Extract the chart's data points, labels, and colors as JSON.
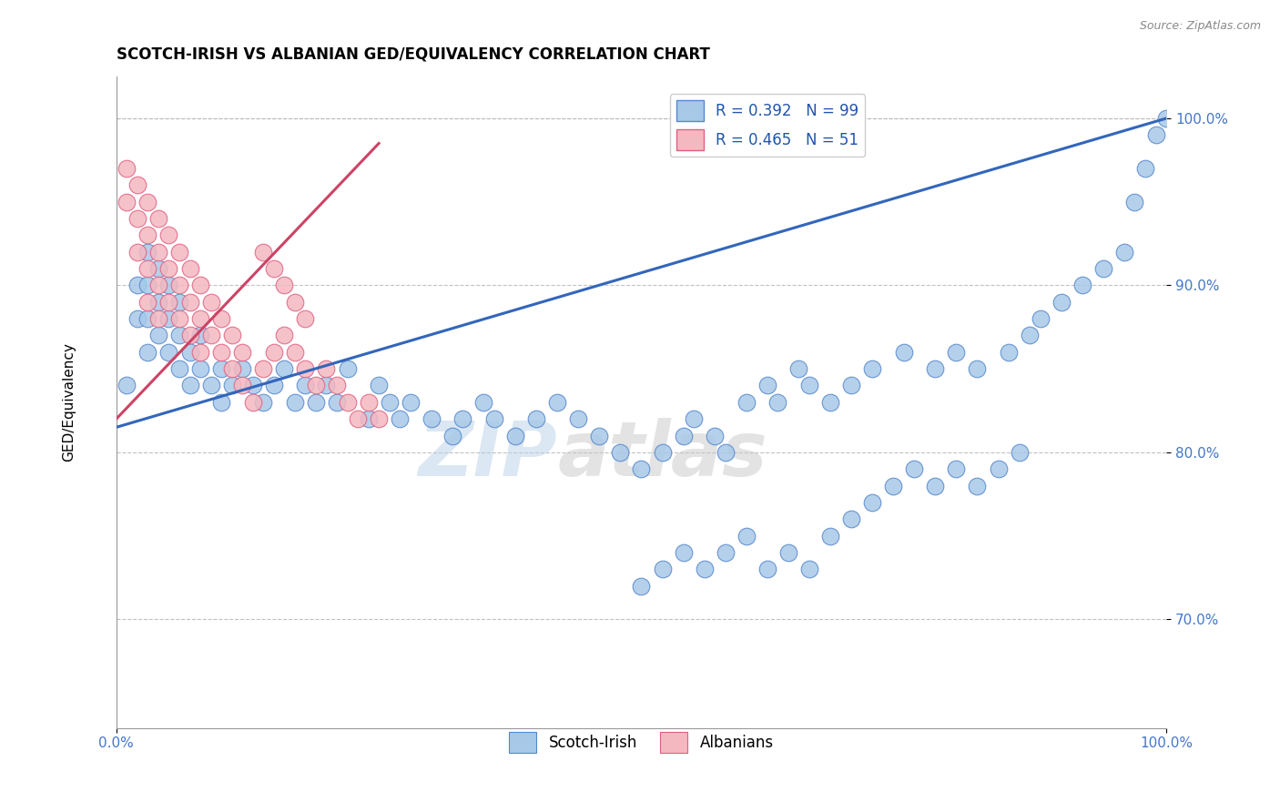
{
  "title": "SCOTCH-IRISH VS ALBANIAN GED/EQUIVALENCY CORRELATION CHART",
  "source_text": "Source: ZipAtlas.com",
  "ylabel": "GED/Equivalency",
  "xlim": [
    0.0,
    1.0
  ],
  "ylim": [
    0.635,
    1.025
  ],
  "x_ticks": [
    0.0,
    1.0
  ],
  "x_tick_labels": [
    "0.0%",
    "100.0%"
  ],
  "y_ticks": [
    0.7,
    0.8,
    0.9,
    1.0
  ],
  "y_tick_labels": [
    "70.0%",
    "80.0%",
    "90.0%",
    "100.0%"
  ],
  "blue_color": "#a8c8e8",
  "pink_color": "#f4b8c0",
  "blue_edge_color": "#5588cc",
  "pink_edge_color": "#e06080",
  "blue_line_color": "#3366bb",
  "pink_line_color": "#cc4466",
  "legend_blue_label": "R = 0.392   N = 99",
  "legend_pink_label": "R = 0.465   N = 51",
  "watermark": "ZIPatlas",
  "watermark_blue": "#c8ddf0",
  "watermark_gray": "#c8c8c8",
  "scotch_irish_x": [
    0.01,
    0.02,
    0.02,
    0.03,
    0.03,
    0.03,
    0.03,
    0.04,
    0.04,
    0.04,
    0.05,
    0.05,
    0.05,
    0.06,
    0.06,
    0.06,
    0.07,
    0.07,
    0.08,
    0.08,
    0.09,
    0.1,
    0.1,
    0.11,
    0.12,
    0.13,
    0.14,
    0.15,
    0.16,
    0.17,
    0.18,
    0.19,
    0.2,
    0.21,
    0.22,
    0.24,
    0.25,
    0.26,
    0.27,
    0.28,
    0.3,
    0.32,
    0.33,
    0.35,
    0.36,
    0.38,
    0.4,
    0.42,
    0.44,
    0.46,
    0.48,
    0.5,
    0.52,
    0.54,
    0.55,
    0.57,
    0.58,
    0.6,
    0.62,
    0.63,
    0.65,
    0.66,
    0.68,
    0.7,
    0.72,
    0.75,
    0.78,
    0.8,
    0.82,
    0.85,
    0.87,
    0.88,
    0.9,
    0.92,
    0.94,
    0.96,
    0.97,
    0.98,
    0.99,
    1.0,
    0.5,
    0.52,
    0.54,
    0.56,
    0.58,
    0.6,
    0.62,
    0.64,
    0.66,
    0.68,
    0.7,
    0.72,
    0.74,
    0.76,
    0.78,
    0.8,
    0.82,
    0.84,
    0.86
  ],
  "scotch_irish_y": [
    0.84,
    0.88,
    0.9,
    0.86,
    0.88,
    0.9,
    0.92,
    0.87,
    0.89,
    0.91,
    0.86,
    0.88,
    0.9,
    0.85,
    0.87,
    0.89,
    0.84,
    0.86,
    0.85,
    0.87,
    0.84,
    0.83,
    0.85,
    0.84,
    0.85,
    0.84,
    0.83,
    0.84,
    0.85,
    0.83,
    0.84,
    0.83,
    0.84,
    0.83,
    0.85,
    0.82,
    0.84,
    0.83,
    0.82,
    0.83,
    0.82,
    0.81,
    0.82,
    0.83,
    0.82,
    0.81,
    0.82,
    0.83,
    0.82,
    0.81,
    0.8,
    0.79,
    0.8,
    0.81,
    0.82,
    0.81,
    0.8,
    0.83,
    0.84,
    0.83,
    0.85,
    0.84,
    0.83,
    0.84,
    0.85,
    0.86,
    0.85,
    0.86,
    0.85,
    0.86,
    0.87,
    0.88,
    0.89,
    0.9,
    0.91,
    0.92,
    0.95,
    0.97,
    0.99,
    1.0,
    0.72,
    0.73,
    0.74,
    0.73,
    0.74,
    0.75,
    0.73,
    0.74,
    0.73,
    0.75,
    0.76,
    0.77,
    0.78,
    0.79,
    0.78,
    0.79,
    0.78,
    0.79,
    0.8
  ],
  "albanian_x": [
    0.01,
    0.01,
    0.02,
    0.02,
    0.02,
    0.03,
    0.03,
    0.03,
    0.03,
    0.04,
    0.04,
    0.04,
    0.04,
    0.05,
    0.05,
    0.05,
    0.06,
    0.06,
    0.06,
    0.07,
    0.07,
    0.07,
    0.08,
    0.08,
    0.08,
    0.09,
    0.09,
    0.1,
    0.1,
    0.11,
    0.11,
    0.12,
    0.12,
    0.13,
    0.14,
    0.15,
    0.16,
    0.17,
    0.18,
    0.19,
    0.2,
    0.21,
    0.22,
    0.23,
    0.24,
    0.25,
    0.14,
    0.15,
    0.16,
    0.17,
    0.18
  ],
  "albanian_y": [
    0.97,
    0.95,
    0.96,
    0.94,
    0.92,
    0.95,
    0.93,
    0.91,
    0.89,
    0.94,
    0.92,
    0.9,
    0.88,
    0.93,
    0.91,
    0.89,
    0.92,
    0.9,
    0.88,
    0.91,
    0.89,
    0.87,
    0.9,
    0.88,
    0.86,
    0.89,
    0.87,
    0.88,
    0.86,
    0.87,
    0.85,
    0.86,
    0.84,
    0.83,
    0.85,
    0.86,
    0.87,
    0.86,
    0.85,
    0.84,
    0.85,
    0.84,
    0.83,
    0.82,
    0.83,
    0.82,
    0.92,
    0.91,
    0.9,
    0.89,
    0.88
  ],
  "blue_trend_x": [
    0.0,
    1.0
  ],
  "blue_trend_y": [
    0.815,
    1.0
  ],
  "pink_trend_x": [
    0.0,
    0.25
  ],
  "pink_trend_y": [
    0.82,
    0.985
  ],
  "title_fontsize": 12,
  "axis_label_fontsize": 11,
  "tick_fontsize": 11,
  "legend_fontsize": 12,
  "dot_size": 180
}
